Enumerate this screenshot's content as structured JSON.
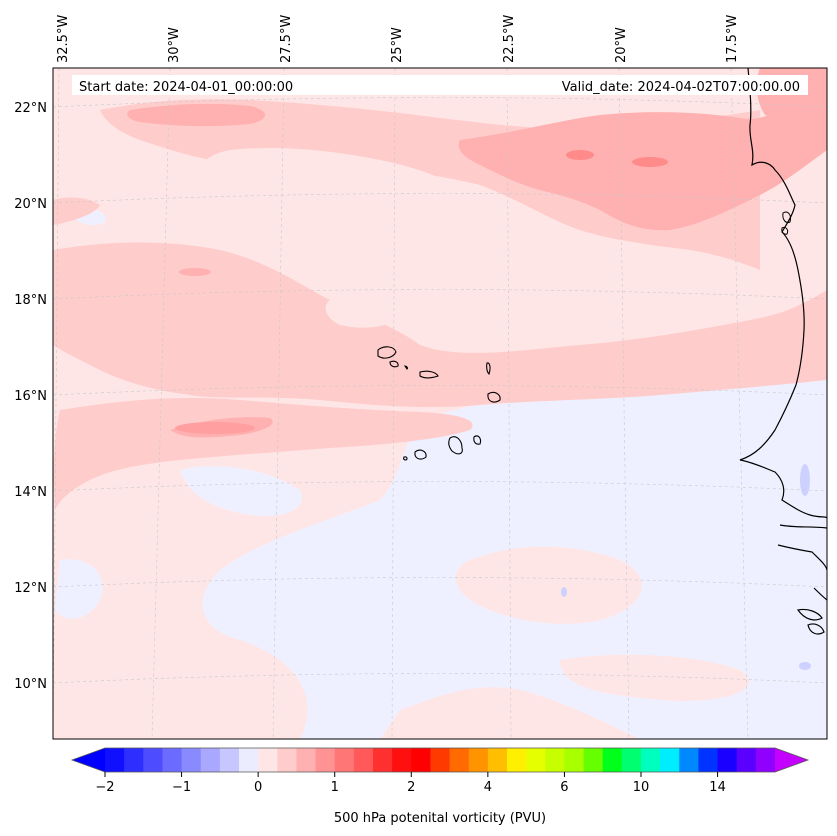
{
  "header": {
    "start_date": "Start date: 2024-04-01_00:00:00",
    "valid_date": "Valid_date: 2024-04-02T07:00:00.00"
  },
  "longitude_labels": [
    "32.5°W",
    "30°W",
    "27.5°W",
    "25°W",
    "22.5°W",
    "20°W",
    "17.5°W"
  ],
  "latitude_labels": [
    "22°N",
    "20°N",
    "18°N",
    "16°N",
    "14°N",
    "12°N",
    "10°N"
  ],
  "colorbar": {
    "title": "500 hPa potenital vorticity (PVU)",
    "ticks": [
      "−2",
      "−1",
      "0",
      "1",
      "2",
      "4",
      "6",
      "10",
      "14"
    ],
    "colors": [
      "#1010ff",
      "#2e2eff",
      "#4d4dff",
      "#6b6bff",
      "#8a8aff",
      "#a8a8ff",
      "#c7c7ff",
      "#ececff",
      "#ffe6e6",
      "#ffcccc",
      "#ffb0b0",
      "#ff9393",
      "#ff7676",
      "#ff5959",
      "#ff3030",
      "#ff1010",
      "#ff0000",
      "#ff3a00",
      "#ff6b00",
      "#ff9400",
      "#ffbf00",
      "#ffef00",
      "#e6ff00",
      "#c8ff00",
      "#a8ff00",
      "#66ff00",
      "#00ff1a",
      "#00ff70",
      "#00ffbf",
      "#00ecff",
      "#0088ff",
      "#0033ff",
      "#1a00ff",
      "#5a00ff",
      "#8f00ff"
    ],
    "under_color": "#0000ff",
    "over_color": "#c400ff"
  },
  "field_colors": {
    "base_pink": "#ffe6e6",
    "light_pink": "#ffcccc",
    "mid_pink": "#ffb0b0",
    "dark_pink": "#ff8a8a",
    "pale_blue": "#eff0ff",
    "blue_patch": "#cdd1ff"
  }
}
